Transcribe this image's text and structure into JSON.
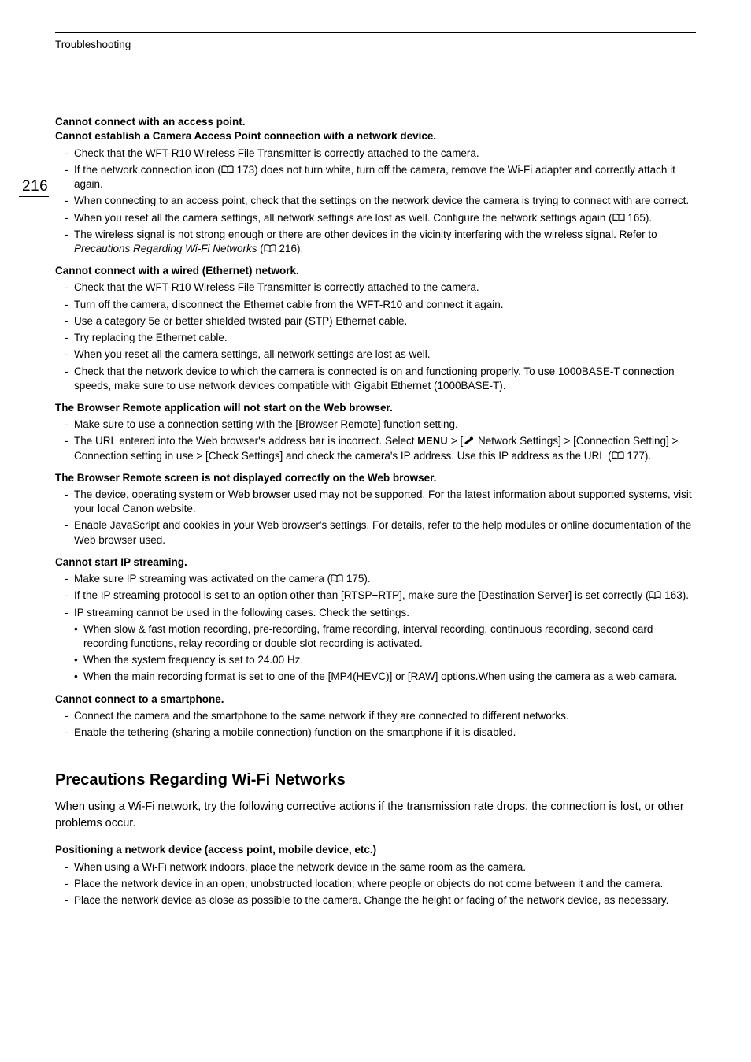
{
  "header": {
    "section_label": "Troubleshooting",
    "page_number": "216"
  },
  "topics": [
    {
      "title_lines": [
        "Cannot connect with an access point.",
        "Cannot establish a Camera Access Point connection with a network device."
      ],
      "items": [
        {
          "text": "Check that the WFT-R10 Wireless File Transmitter is correctly attached to the camera."
        },
        {
          "pre": "If the network connection icon (",
          "ref": "173",
          "post": ") does not turn white, turn off the camera, remove the Wi-Fi adapter and correctly attach it again."
        },
        {
          "text": "When connecting to an access point, check that the settings on the network device the camera is trying to connect with are correct."
        },
        {
          "pre": "When you reset all the camera settings, all network settings are lost as well. Configure the network settings again (",
          "ref": "165",
          "post": ")."
        },
        {
          "pre_italic": "The wireless signal is not strong enough or there are other devices in the vicinity interfering with the wireless signal. Refer to ",
          "italic": "Precautions Regarding Wi-Fi Networks",
          "post_open": " (",
          "ref": "216",
          "post": ")."
        }
      ]
    },
    {
      "title_lines": [
        "Cannot connect with a wired (Ethernet) network."
      ],
      "items": [
        {
          "text": "Check that the WFT-R10 Wireless File Transmitter is correctly attached to the camera."
        },
        {
          "text": "Turn off the camera, disconnect the Ethernet cable from the WFT-R10 and connect it again."
        },
        {
          "text": "Use a category 5e or better shielded twisted pair (STP) Ethernet cable."
        },
        {
          "text": "Try replacing the Ethernet cable."
        },
        {
          "text": "When you reset all the camera settings, all network settings are lost as well."
        },
        {
          "text": "Check that the network device to which the camera is connected is on and functioning properly. To use 1000BASE-T connection speeds, make sure to use network devices compatible with Gigabit Ethernet (1000BASE-T)."
        }
      ]
    },
    {
      "title_lines": [
        "The Browser Remote application will not start on the Web browser."
      ],
      "items": [
        {
          "text": "Make sure to use a connection setting with the [Browser Remote] function setting."
        },
        {
          "menu_pre": "The URL entered into the Web browser's address bar is incorrect. Select ",
          "menu": "MENU",
          "menu_post": " > [",
          "wrench": true,
          "wrench_post": " Network Settings] > [Connection Setting] > Connection setting in use > [Check Settings] and check the camera's IP address. Use this IP address as the URL (",
          "ref": "177",
          "post": ")."
        }
      ]
    },
    {
      "title_lines": [
        "The Browser Remote screen is not displayed correctly on the Web browser."
      ],
      "items": [
        {
          "text": "The device, operating system or Web browser used may not be supported. For the latest information about supported systems, visit your local Canon website."
        },
        {
          "text": "Enable JavaScript and cookies in your Web browser's settings. For details, refer to the help modules or online documentation of the Web browser used."
        }
      ]
    },
    {
      "title_lines": [
        "Cannot start IP streaming."
      ],
      "items": [
        {
          "pre": "Make sure IP streaming was activated on the camera (",
          "ref": "175",
          "post": ")."
        },
        {
          "pre": "If the IP streaming protocol is set to an option other than [RTSP+RTP], make sure the [Destination Server] is set correctly (",
          "ref": "163",
          "post": ")."
        },
        {
          "text": "IP streaming cannot be used in the following cases. Check the settings.",
          "bullets": [
            "When slow & fast motion recording, pre-recording, frame recording, interval recording, continuous recording, second card recording functions, relay recording or double slot recording is activated.",
            "When the system frequency is set to 24.00 Hz.",
            "When the main recording format is set to one of the [MP4(HEVC)] or [RAW] options.When using the camera as a web camera."
          ]
        }
      ]
    },
    {
      "title_lines": [
        "Cannot connect to a smartphone."
      ],
      "items": [
        {
          "text": "Connect the camera and the smartphone to the same network if they are connected to different networks."
        },
        {
          "text": "Enable the tethering (sharing a mobile connection) function on the smartphone if it is disabled."
        }
      ]
    }
  ],
  "precautions": {
    "heading": "Precautions Regarding Wi-Fi Networks",
    "intro": "When using a Wi-Fi network, try the following corrective actions if the transmission rate drops, the connection is lost, or other problems occur.",
    "sub_title": "Positioning a network device (access point, mobile device, etc.)",
    "items": [
      {
        "text": "When using a Wi-Fi network indoors, place the network device in the same room as the camera."
      },
      {
        "text": "Place the network device in an open, unobstructed location, where people or objects do not come between it and the camera."
      },
      {
        "text": "Place the network device as close as possible to the camera. Change the height or facing of the network device, as necessary."
      }
    ]
  }
}
